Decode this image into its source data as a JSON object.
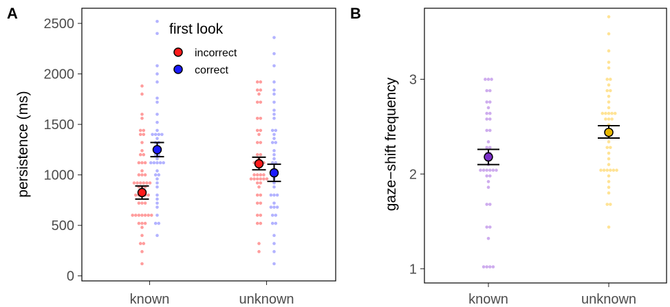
{
  "chart_data": [
    {
      "type": "scatter",
      "panel_label": "A",
      "ylabel": "persistence (ms)",
      "categories": [
        "known",
        "unknown"
      ],
      "ylim": [
        -50,
        2650
      ],
      "yticks": [
        0,
        500,
        1000,
        1500,
        2000,
        2500
      ],
      "grid": false,
      "legend": {
        "title": "first look",
        "position": "top-center"
      },
      "series": [
        {
          "name": "incorrect",
          "color": "#ff1a1a",
          "dot_color": "#ff8c8c",
          "summary": [
            {
              "category": "known",
              "mean": 825,
              "ci_low": 760,
              "ci_high": 890
            },
            {
              "category": "unknown",
              "mean": 1110,
              "ci_low": 1050,
              "ci_high": 1175
            }
          ],
          "points": {
            "known": [
              120,
              230,
              320,
              320,
              400,
              480,
              520,
              520,
              520,
              600,
              600,
              600,
              600,
              600,
              600,
              600,
              700,
              700,
              700,
              780,
              780,
              780,
              780,
              800,
              880,
              880,
              880,
              900,
              900,
              900,
              900,
              900,
              900,
              1000,
              1000,
              1000,
              1050,
              1100,
              1100,
              1100,
              1200,
              1200,
              1250,
              1300,
              1380,
              1380,
              1450,
              1450,
              1550,
              1600,
              1800,
              1860
            ],
            "unknown": [
              230,
              320,
              520,
              520,
              600,
              600,
              700,
              700,
              800,
              800,
              880,
              900,
              900,
              950,
              950,
              950,
              950,
              950,
              950,
              1000,
              1000,
              1000,
              1000,
              1100,
              1100,
              1100,
              1100,
              1150,
              1180,
              1180,
              1300,
              1300,
              1380,
              1450,
              1450,
              1550,
              1550,
              1700,
              1700,
              1800,
              1850,
              1850,
              1930,
              1930
            ]
          }
        },
        {
          "name": "correct",
          "color": "#1a1aff",
          "dot_color": "#a6a6ff",
          "summary": [
            {
              "category": "known",
              "mean": 1250,
              "ci_low": 1180,
              "ci_high": 1320
            },
            {
              "category": "unknown",
              "mean": 1020,
              "ci_low": 935,
              "ci_high": 1105
            }
          ],
          "points": {
            "known": [
              400,
              520,
              520,
              600,
              680,
              700,
              760,
              800,
              880,
              930,
              950,
              1000,
              1000,
              1050,
              1100,
              1100,
              1100,
              1100,
              1100,
              1150,
              1180,
              1200,
              1250,
              1300,
              1300,
              1350,
              1380,
              1380,
              1380,
              1380,
              1450,
              1500,
              1600,
              1700,
              1750,
              1900,
              2000,
              2080,
              2380,
              2510
            ],
            "unknown": [
              120,
              230,
              320,
              400,
              520,
              520,
              600,
              600,
              680,
              680,
              680,
              700,
              780,
              780,
              800,
              880,
              900,
              950,
              1000,
              1000,
              1100,
              1100,
              1150,
              1200,
              1250,
              1300,
              1300,
              1350,
              1380,
              1450,
              1450,
              1550,
              1600,
              1650,
              1700,
              1800,
              1850,
              1930,
              2080,
              2180,
              2340
            ]
          }
        }
      ]
    },
    {
      "type": "scatter",
      "panel_label": "B",
      "ylabel": "gaze−shift frequency",
      "categories": [
        "known",
        "unknown"
      ],
      "ylim": [
        0.85,
        3.75
      ],
      "yticks": [
        1,
        2,
        3
      ],
      "grid": false,
      "series": [
        {
          "category": "known",
          "color": "#7b2fc9",
          "dot_color": "#c9a3ec",
          "mean": 2.18,
          "ci_low": 2.1,
          "ci_high": 2.26,
          "points": [
            1.0,
            1.0,
            1.0,
            1.0,
            1.33,
            1.45,
            1.45,
            1.7,
            1.7,
            1.85,
            1.9,
            2.0,
            2.0,
            2.05,
            2.05,
            2.05,
            2.05,
            2.05,
            2.05,
            2.1,
            2.15,
            2.2,
            2.2,
            2.25,
            2.3,
            2.35,
            2.45,
            2.45,
            2.55,
            2.6,
            2.65,
            2.65,
            2.7,
            2.75,
            2.75,
            2.85,
            2.9,
            3.0,
            3.0,
            3.0
          ]
        },
        {
          "category": "unknown",
          "color": "#e8b800",
          "dot_color": "#ffe08a",
          "mean": 2.44,
          "ci_low": 2.38,
          "ci_high": 2.51,
          "points": [
            1.45,
            1.7,
            1.7,
            1.8,
            1.85,
            1.9,
            2.0,
            2.05,
            2.05,
            2.05,
            2.05,
            2.05,
            2.05,
            2.1,
            2.15,
            2.2,
            2.25,
            2.3,
            2.35,
            2.4,
            2.45,
            2.5,
            2.55,
            2.6,
            2.6,
            2.65,
            2.65,
            2.65,
            2.65,
            2.65,
            2.7,
            2.75,
            2.8,
            2.85,
            2.9,
            2.95,
            3.0,
            3.0,
            3.1,
            3.2,
            3.3,
            3.5,
            3.66
          ]
        }
      ]
    }
  ]
}
